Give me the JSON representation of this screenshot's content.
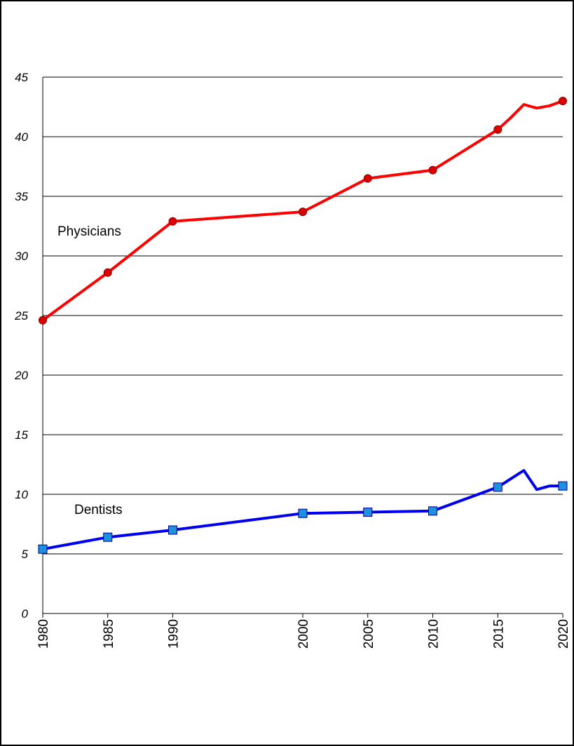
{
  "chart_data": {
    "type": "line",
    "title": "",
    "xlabel": "",
    "ylabel": "",
    "xlim": [
      1980,
      2020
    ],
    "ylim": [
      0,
      45
    ],
    "y_ticks": [
      "0",
      "5",
      "10",
      "15",
      "20",
      "25",
      "30",
      "35",
      "40",
      "45"
    ],
    "x_ticks": [
      "1980",
      "1985",
      "1990",
      "2000",
      "2005",
      "2010",
      "2015",
      "2020"
    ],
    "grid": "horizontal",
    "series": [
      {
        "name": "Physicians",
        "color": "#ff0000",
        "marker": "circle",
        "marker_color": "#dd0000",
        "points": [
          {
            "x": 1980,
            "y": 24.6,
            "marker": true
          },
          {
            "x": 1985,
            "y": 28.6,
            "marker": true
          },
          {
            "x": 1990,
            "y": 32.9,
            "marker": true
          },
          {
            "x": 2000,
            "y": 33.7,
            "marker": true
          },
          {
            "x": 2005,
            "y": 36.5,
            "marker": true
          },
          {
            "x": 2010,
            "y": 37.2,
            "marker": true
          },
          {
            "x": 2015,
            "y": 40.6,
            "marker": true
          },
          {
            "x": 2016,
            "y": 41.6,
            "marker": false
          },
          {
            "x": 2017,
            "y": 42.7,
            "marker": false
          },
          {
            "x": 2018,
            "y": 42.4,
            "marker": false
          },
          {
            "x": 2019,
            "y": 42.6,
            "marker": false
          },
          {
            "x": 2020,
            "y": 43.0,
            "marker": true
          }
        ]
      },
      {
        "name": "Dentists",
        "color": "#0000ee",
        "marker": "square",
        "marker_color": "#1e90e0",
        "points": [
          {
            "x": 1980,
            "y": 5.4,
            "marker": true
          },
          {
            "x": 1985,
            "y": 6.4,
            "marker": true
          },
          {
            "x": 1990,
            "y": 7.0,
            "marker": true
          },
          {
            "x": 2000,
            "y": 8.4,
            "marker": true
          },
          {
            "x": 2005,
            "y": 8.5,
            "marker": true
          },
          {
            "x": 2010,
            "y": 8.6,
            "marker": true
          },
          {
            "x": 2015,
            "y": 10.6,
            "marker": true
          },
          {
            "x": 2016,
            "y": 11.3,
            "marker": false
          },
          {
            "x": 2017,
            "y": 12.0,
            "marker": false
          },
          {
            "x": 2018,
            "y": 10.4,
            "marker": false
          },
          {
            "x": 2019,
            "y": 10.7,
            "marker": false
          },
          {
            "x": 2020,
            "y": 10.7,
            "marker": true
          }
        ]
      }
    ]
  }
}
